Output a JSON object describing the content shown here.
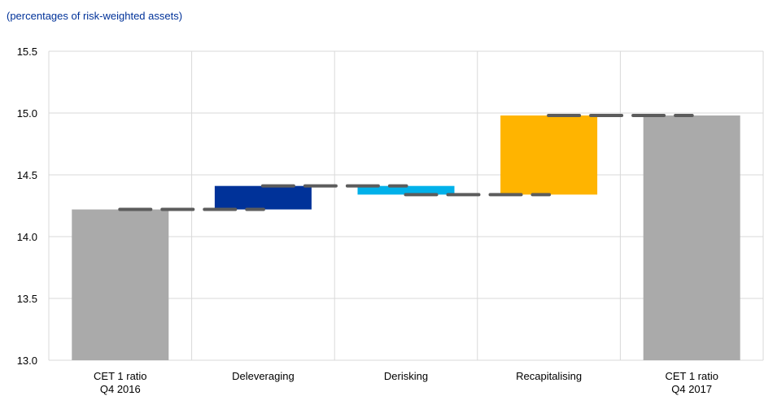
{
  "chart_data": {
    "type": "bar",
    "subtitle": "(percentages of risk-weighted assets)",
    "categories": [
      [
        "CET 1 ratio",
        "Q4 2016"
      ],
      [
        "Deleveraging"
      ],
      [
        "Derisking"
      ],
      [
        "Recapitalising"
      ],
      [
        "CET 1 ratio",
        "Q4 2017"
      ]
    ],
    "bars": [
      {
        "base": 13.0,
        "top": 14.22,
        "color": "#aaaaaa"
      },
      {
        "base": 14.22,
        "top": 14.41,
        "color": "#003299"
      },
      {
        "base": 14.34,
        "top": 14.41,
        "color": "#00b1ea"
      },
      {
        "base": 14.34,
        "top": 14.98,
        "color": "#ffb400"
      },
      {
        "base": 13.0,
        "top": 14.98,
        "color": "#aaaaaa"
      }
    ],
    "connector_levels": [
      14.22,
      14.41,
      14.34,
      14.98
    ],
    "connector_color": "#5c5c5c",
    "ylim": [
      13.0,
      15.5
    ],
    "yticks": [
      "13.0",
      "13.5",
      "14.0",
      "14.5",
      "15.0",
      "15.5"
    ],
    "grid": true,
    "grid_color": "#d9d9d9"
  }
}
